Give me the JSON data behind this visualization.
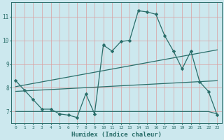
{
  "xlabel": "Humidex (Indice chaleur)",
  "background_color": "#cce8ee",
  "line_color": "#2a6e6a",
  "grid_color_v": "#daa0a0",
  "grid_color_h": "#daa0a0",
  "xlim": [
    -0.5,
    23.5
  ],
  "ylim": [
    6.5,
    11.6
  ],
  "yticks": [
    7,
    8,
    9,
    10,
    11
  ],
  "xticks": [
    0,
    1,
    2,
    3,
    4,
    5,
    6,
    7,
    8,
    9,
    10,
    11,
    12,
    13,
    14,
    15,
    16,
    17,
    18,
    19,
    20,
    21,
    22,
    23
  ],
  "series1_x": [
    0,
    1,
    2,
    3,
    4,
    5,
    6,
    7,
    8,
    9,
    10,
    11,
    12,
    13,
    14,
    15,
    16,
    17,
    18,
    19,
    20,
    21,
    22,
    23
  ],
  "series1_y": [
    8.3,
    7.9,
    7.5,
    7.1,
    7.1,
    6.9,
    6.85,
    6.75,
    7.75,
    6.9,
    9.8,
    9.55,
    9.95,
    10.0,
    11.25,
    11.2,
    11.1,
    10.2,
    9.55,
    8.8,
    9.55,
    8.25,
    7.85,
    6.85
  ],
  "line2_x": [
    0,
    23
  ],
  "line2_y": [
    8.05,
    9.6
  ],
  "line3_x": [
    0,
    23
  ],
  "line3_y": [
    7.85,
    8.3
  ],
  "line4_x": [
    0,
    8,
    22,
    23
  ],
  "line4_y": [
    7.0,
    7.0,
    7.0,
    6.9
  ]
}
